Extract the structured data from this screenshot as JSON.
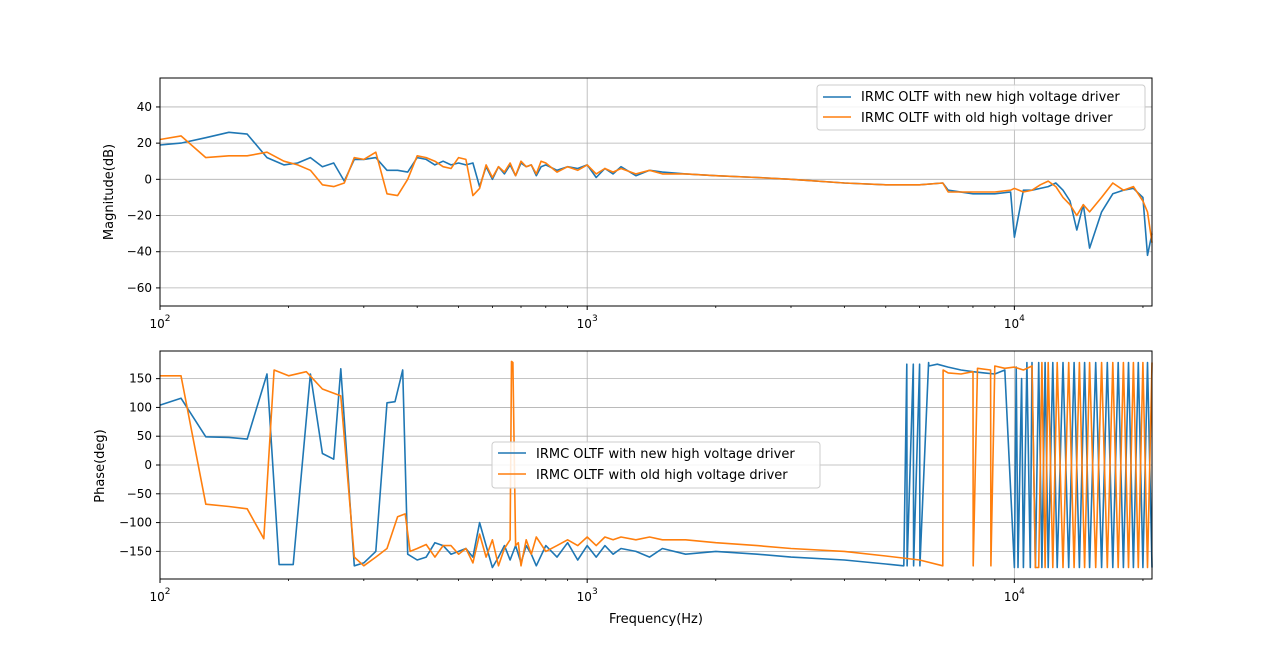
{
  "colors": {
    "new": "#1f77b4",
    "old": "#ff7f0e",
    "grid": "#b0b0b0"
  },
  "chart_data": [
    {
      "type": "line",
      "xscale": "log",
      "xlim": [
        100,
        21000
      ],
      "ylim": [
        -70,
        56
      ],
      "grid": true,
      "legend_position": "top-right",
      "ylabel": "Magnitude(dB)",
      "xlabel": "",
      "yticks": [
        "40",
        "20",
        "0",
        "−20",
        "−40",
        "−60"
      ],
      "xticks": [
        {
          "base": "10",
          "exp": "2"
        },
        {
          "base": "10",
          "exp": "3"
        },
        {
          "base": "10",
          "exp": "4"
        }
      ],
      "series": [
        {
          "name": "IRMC OLTF with new high voltage driver",
          "x": [
            100,
            112,
            128,
            145,
            160,
            178,
            195,
            210,
            225,
            240,
            255,
            270,
            285,
            300,
            320,
            340,
            360,
            380,
            400,
            420,
            440,
            460,
            480,
            500,
            520,
            540,
            560,
            580,
            600,
            620,
            640,
            660,
            680,
            700,
            720,
            740,
            760,
            780,
            800,
            850,
            900,
            950,
            1000,
            1050,
            1100,
            1150,
            1200,
            1300,
            1400,
            1500,
            1700,
            2000,
            2500,
            3000,
            4000,
            5000,
            6000,
            6800,
            7000,
            8000,
            9000,
            9800,
            10000,
            10500,
            11000,
            11500,
            12000,
            12500,
            13000,
            13500,
            14000,
            14500,
            15000,
            16000,
            17000,
            18000,
            19000,
            20000,
            20500,
            21000
          ],
          "y": [
            19,
            20,
            23,
            26,
            25,
            12,
            8,
            9,
            12,
            7,
            9,
            -1,
            11,
            11,
            12,
            5,
            5,
            4,
            12,
            11,
            8,
            10,
            8,
            9,
            8,
            9,
            -4,
            7,
            0,
            7,
            3,
            8,
            2,
            9,
            7,
            8,
            2,
            7,
            8,
            5,
            7,
            6,
            8,
            1,
            6,
            3,
            7,
            2,
            5,
            4,
            3,
            2,
            1,
            0,
            -2,
            -3,
            -3,
            -2,
            -6,
            -8,
            -8,
            -7,
            -32,
            -6,
            -6,
            -5,
            -4,
            -2,
            -6,
            -12,
            -28,
            -14,
            -38,
            -18,
            -8,
            -6,
            -5,
            -10,
            -42,
            -30
          ]
        },
        {
          "name": "IRMC OLTF with old high voltage driver",
          "x": [
            100,
            112,
            128,
            145,
            160,
            178,
            195,
            210,
            225,
            240,
            255,
            270,
            285,
            300,
            320,
            340,
            360,
            380,
            400,
            420,
            440,
            460,
            480,
            500,
            520,
            540,
            560,
            580,
            600,
            620,
            640,
            660,
            680,
            700,
            720,
            740,
            760,
            780,
            800,
            850,
            900,
            950,
            1000,
            1050,
            1100,
            1150,
            1200,
            1300,
            1400,
            1500,
            1700,
            2000,
            2500,
            3000,
            4000,
            5000,
            6000,
            6800,
            7000,
            8000,
            9000,
            9800,
            10000,
            10500,
            11000,
            11500,
            12000,
            12500,
            13000,
            13500,
            14000,
            14500,
            15000,
            16000,
            17000,
            18000,
            19000,
            20000,
            20500,
            21000
          ],
          "y": [
            22,
            24,
            12,
            13,
            13,
            15,
            10,
            8,
            5,
            -3,
            -4,
            -2,
            12,
            11,
            15,
            -8,
            -9,
            0,
            13,
            12,
            10,
            7,
            6,
            12,
            11,
            -9,
            -5,
            8,
            1,
            7,
            4,
            9,
            2,
            10,
            7,
            8,
            3,
            10,
            9,
            4,
            7,
            5,
            8,
            3,
            6,
            4,
            6,
            3,
            5,
            3,
            3,
            2,
            1,
            0,
            -2,
            -3,
            -3,
            -2,
            -7,
            -7,
            -7,
            -6,
            -5,
            -7,
            -6,
            -3,
            -1,
            -4,
            -10,
            -14,
            -20,
            -14,
            -18,
            -10,
            -2,
            -6,
            -4,
            -12,
            -18,
            -35
          ]
        }
      ]
    },
    {
      "type": "line",
      "xscale": "log",
      "xlim": [
        100,
        21000
      ],
      "ylim": [
        -198,
        198
      ],
      "grid": true,
      "legend_position": "center",
      "ylabel": "Phase(deg)",
      "xlabel": "Frequency(Hz)",
      "yticks": [
        "150",
        "100",
        "50",
        "0",
        "−50",
        "−100",
        "−150"
      ],
      "xticks": [
        {
          "base": "10",
          "exp": "2"
        },
        {
          "base": "10",
          "exp": "3"
        },
        {
          "base": "10",
          "exp": "4"
        }
      ],
      "series": [
        {
          "name": "IRMC OLTF with new high voltage driver",
          "x": [
            100,
            112,
            128,
            145,
            160,
            178,
            190,
            205,
            225,
            240,
            255,
            265,
            285,
            300,
            320,
            340,
            355,
            370,
            380,
            400,
            420,
            440,
            460,
            480,
            500,
            520,
            540,
            560,
            580,
            600,
            620,
            640,
            660,
            680,
            700,
            720,
            740,
            760,
            800,
            850,
            900,
            950,
            1000,
            1050,
            1100,
            1150,
            1200,
            1300,
            1400,
            1500,
            1700,
            2000,
            2500,
            3000,
            4000,
            5000,
            5500,
            5510,
            5600,
            5610,
            5800,
            5810,
            6000,
            6010,
            6300,
            6310,
            6600,
            7000,
            7500,
            8000,
            8500,
            9000,
            9500,
            10000,
            10100,
            10200,
            10400,
            10500,
            10700,
            10900,
            11000,
            11200,
            11400,
            11600,
            11800,
            12000,
            12300,
            12600,
            13000,
            13400,
            13800,
            14200,
            14600,
            15000,
            15500,
            16000,
            16500,
            17000,
            17500,
            18000,
            18500,
            19000,
            19500,
            20000,
            20500,
            21000
          ],
          "y": [
            104,
            116,
            49,
            48,
            45,
            158,
            -173,
            -173,
            158,
            20,
            10,
            167,
            -175,
            -170,
            -150,
            108,
            110,
            165,
            -155,
            -165,
            -160,
            -135,
            -140,
            -155,
            -150,
            -145,
            -160,
            -100,
            -140,
            -178,
            -160,
            -140,
            -165,
            -140,
            -170,
            -140,
            -155,
            -175,
            -140,
            -160,
            -135,
            -165,
            -140,
            -160,
            -140,
            -155,
            -145,
            -150,
            -160,
            -145,
            -155,
            -150,
            -155,
            -160,
            -165,
            -172,
            -175,
            -175,
            175,
            -175,
            175,
            -175,
            175,
            -175,
            178,
            172,
            175,
            170,
            165,
            162,
            160,
            158,
            165,
            -178,
            170,
            -178,
            150,
            -178,
            178,
            -178,
            178,
            -178,
            178,
            -178,
            178,
            -178,
            178,
            -178,
            178,
            -178,
            178,
            -178,
            178,
            -178,
            178,
            -178,
            178,
            -178,
            178,
            -178,
            178,
            -178,
            178,
            -178,
            178,
            -178
          ]
        },
        {
          "name": "IRMC OLTF with old high voltage driver",
          "x": [
            100,
            112,
            128,
            145,
            160,
            175,
            185,
            200,
            220,
            240,
            265,
            285,
            300,
            320,
            340,
            360,
            375,
            385,
            400,
            420,
            440,
            460,
            480,
            500,
            520,
            540,
            560,
            580,
            600,
            620,
            640,
            660,
            665,
            670,
            680,
            690,
            700,
            720,
            740,
            760,
            800,
            850,
            900,
            950,
            1000,
            1050,
            1100,
            1150,
            1200,
            1300,
            1400,
            1500,
            1700,
            2000,
            2500,
            3000,
            4000,
            5000,
            6000,
            6800,
            6810,
            7000,
            7500,
            8000,
            8010,
            8200,
            8800,
            8810,
            9000,
            9500,
            10000,
            10500,
            11000,
            11200,
            11400,
            11600,
            11800,
            12000,
            12300,
            12600,
            13000,
            13400,
            13800,
            14200,
            14600,
            15000,
            15500,
            16000,
            16500,
            17000,
            17500,
            18000,
            18500,
            19000,
            19500,
            20000,
            20500,
            21000
          ],
          "y": [
            155,
            155,
            -68,
            -72,
            -76,
            -128,
            165,
            155,
            162,
            132,
            120,
            -160,
            -175,
            -160,
            -145,
            -90,
            -85,
            -150,
            -145,
            -138,
            -160,
            -140,
            -140,
            -155,
            -145,
            -170,
            -120,
            -160,
            -130,
            -175,
            -145,
            -130,
            180,
            178,
            -140,
            -135,
            -175,
            -130,
            -155,
            -125,
            -150,
            -140,
            -130,
            -140,
            -125,
            -140,
            -125,
            -130,
            -125,
            -130,
            -125,
            -130,
            -130,
            -135,
            -140,
            -145,
            -150,
            -158,
            -165,
            -175,
            165,
            160,
            158,
            162,
            -175,
            168,
            165,
            -175,
            172,
            168,
            170,
            165,
            172,
            -178,
            -178,
            178,
            -178,
            178,
            -178,
            178,
            -178,
            178,
            -178,
            178,
            -178,
            178,
            -178,
            178,
            -178,
            178,
            -178,
            178,
            -178,
            178,
            -178,
            178,
            -178,
            178
          ]
        }
      ]
    }
  ]
}
